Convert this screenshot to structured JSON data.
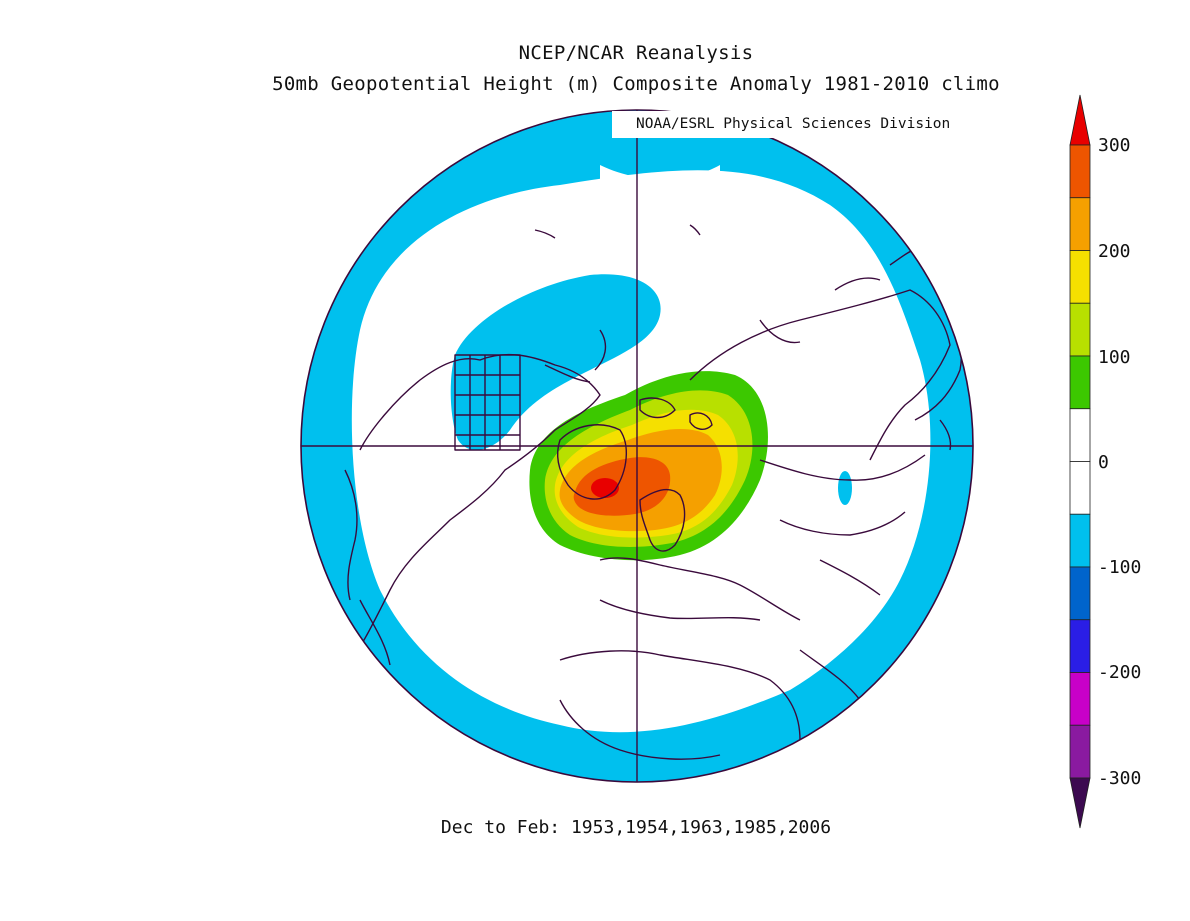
{
  "header": {
    "title": "NCEP/NCAR Reanalysis",
    "subtitle": "50mb Geopotential Height (m) Composite Anomaly 1981-2010 climo",
    "credit": "NOAA/ESRL Physical Sciences Division"
  },
  "footer": {
    "period": "Dec to Feb: 1953,1954,1963,1985,2006"
  },
  "map": {
    "projection": "north-polar-stereographic",
    "variable": "50mb geopotential height anomaly",
    "units": "m",
    "features": [
      "coastlines",
      "country-borders",
      "us-state-borders",
      "meridian-0-180",
      "meridian-90W-90E"
    ]
  },
  "colorbar": {
    "labels": [
      "300",
      "200",
      "100",
      "0",
      "-100",
      "-200",
      "-300"
    ],
    "bins": [
      {
        "min": 300,
        "max": null,
        "color": "#e80000"
      },
      {
        "min": 250,
        "max": 300,
        "color": "#ee5500"
      },
      {
        "min": 200,
        "max": 250,
        "color": "#f5a000"
      },
      {
        "min": 150,
        "max": 200,
        "color": "#f5e000"
      },
      {
        "min": 100,
        "max": 150,
        "color": "#b8e000"
      },
      {
        "min": 50,
        "max": 100,
        "color": "#3cc800"
      },
      {
        "min": 0,
        "max": 50,
        "color": "#ffffff"
      },
      {
        "min": -50,
        "max": 0,
        "color": "#ffffff"
      },
      {
        "min": -100,
        "max": -50,
        "color": "#00c0ee"
      },
      {
        "min": -150,
        "max": -100,
        "color": "#0064cc"
      },
      {
        "min": -200,
        "max": -150,
        "color": "#2a1ee6"
      },
      {
        "min": -250,
        "max": -200,
        "color": "#c800c8"
      },
      {
        "min": -300,
        "max": -250,
        "color": "#8a1aa0"
      },
      {
        "min": null,
        "max": -300,
        "color": "#3c0a50"
      }
    ]
  }
}
